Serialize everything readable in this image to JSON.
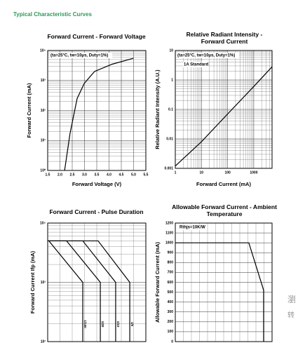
{
  "heading": "Typical Characteristic Curves",
  "side_text": [
    "瀏",
    "转"
  ],
  "chart_data": [
    {
      "type": "line",
      "title": "Forward Current - Forward Voltage",
      "x_label": "Forward Voltage (V)",
      "y_label": "Forward Current (mA)",
      "annotations": [
        "(ta=25°C, tw=10μs, Duty=1%)"
      ],
      "x": [
        2.19,
        2.41,
        2.7,
        2.99,
        3.41,
        4.13,
        4.99
      ],
      "values": [
        1,
        17,
        250,
        800,
        2000,
        3500,
        5500
      ],
      "color": "#000000",
      "xlim": [
        1.5,
        5.5
      ],
      "ylim": [
        1,
        10000
      ],
      "yscale": "log",
      "xticks": [
        1.5,
        {
          "value": 2,
          "label": "2.0"
        },
        2.5,
        {
          "value": 3,
          "label": "3.0"
        },
        3.5,
        {
          "value": 4,
          "label": "4.0"
        },
        4.5,
        {
          "value": 5,
          "label": "5.0"
        },
        5.5
      ],
      "yticks": [
        {
          "value": 1,
          "label": "10⁰"
        },
        {
          "value": 10,
          "label": "10¹"
        },
        {
          "value": 100,
          "label": "10²"
        },
        {
          "value": 1000,
          "label": "10³"
        },
        {
          "value": 10000,
          "label": "10⁴"
        }
      ],
      "grid": true
    },
    {
      "type": "line",
      "title": "Relative Radiant Intensity - Forward Current",
      "x_label": "Forward Current (mA)",
      "y_label": "Relative Radiant Intensity (A.U.)",
      "annotations": [
        "(ta=25°C, tw=10μs, Duty=1%)",
        "1A Standard"
      ],
      "x": [
        1,
        10,
        100,
        1000,
        5000
      ],
      "values": [
        0.0012,
        0.008,
        0.07,
        0.6,
        2.8
      ],
      "color": "#000000",
      "xlim": [
        1,
        5000
      ],
      "ylim": [
        0.001,
        10
      ],
      "xscale": "log",
      "yscale": "log",
      "xticks": [
        1,
        10,
        100,
        1000
      ],
      "yticks": [
        0.001,
        0.01,
        0.1,
        1,
        10
      ],
      "grid": true
    },
    {
      "type": "line",
      "title": "Forward Current - Pulse Duration",
      "y_label": "Forward Current Ifp (mA)",
      "xlim": [
        0,
        8
      ],
      "ylim": [
        100,
        10000
      ],
      "yscale": "log",
      "yticks": [
        {
          "value": 100,
          "label": "10²"
        },
        {
          "value": 1000,
          "label": "10³"
        },
        {
          "value": 10000,
          "label": "10⁴"
        }
      ],
      "series": [
        {
          "name": "1/100",
          "color": "#000000",
          "x": [
            0,
            0.1,
            2.86,
            2.86
          ],
          "values": [
            5000,
            5000,
            1000,
            100
          ]
        },
        {
          "name": "1/20",
          "color": "#000000",
          "x": [
            0,
            1.54,
            4.29,
            4.29
          ],
          "values": [
            5000,
            5000,
            1000,
            100
          ]
        },
        {
          "name": "1/10",
          "color": "#000000",
          "x": [
            0,
            2.86,
            5.54,
            5.54
          ],
          "values": [
            5000,
            5000,
            1000,
            100
          ]
        },
        {
          "name": "1/5",
          "color": "#000000",
          "x": [
            0,
            4.11,
            6.69,
            6.69
          ],
          "values": [
            5000,
            5000,
            1000,
            100
          ]
        }
      ],
      "grid": true
    },
    {
      "type": "line",
      "title": "Allowable Forward Current - Ambient Temperature",
      "y_label": "Allowable Forward Current (mA)",
      "annotations": [
        "Rthjs=10K/W"
      ],
      "x": [
        0,
        7.6,
        9.13,
        9.13
      ],
      "values": [
        1000,
        1000,
        520,
        0
      ],
      "color": "#000000",
      "xlim": [
        0,
        10
      ],
      "ylim": [
        0,
        1200
      ],
      "yticks": [
        0,
        100,
        200,
        300,
        400,
        500,
        600,
        700,
        800,
        900,
        1000,
        1100,
        1200
      ],
      "grid": true
    }
  ]
}
